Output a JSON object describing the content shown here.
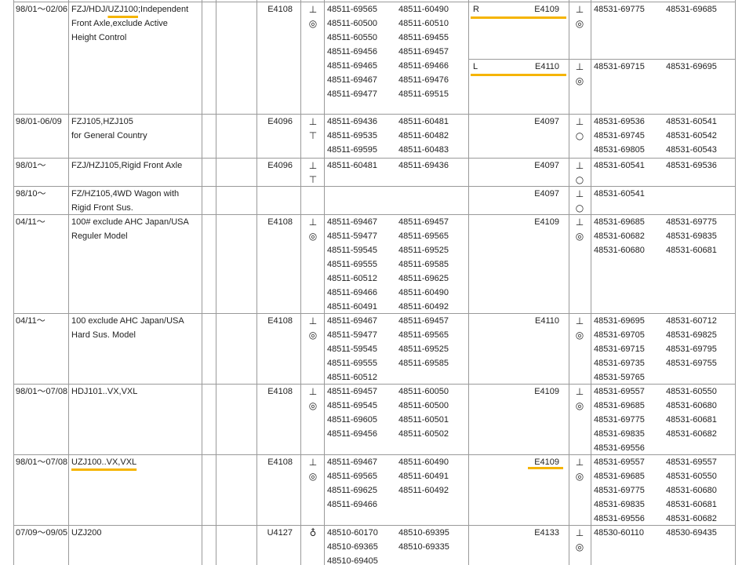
{
  "rows": [
    {
      "date": "98/01～02/06",
      "desc": [
        [
          {
            "text": "FZJ/HDJ/"
          },
          {
            "text": "UZJ100",
            "underline": true
          },
          {
            "text": ";Independent"
          }
        ],
        [
          {
            "text": "Front Axle,exclude Active"
          }
        ],
        [
          {
            "text": "Height Control"
          }
        ]
      ],
      "front": {
        "code": "E4108",
        "symbols": [
          "⊥",
          "◎"
        ],
        "parts": [
          [
            "48511-69565",
            "48511-60490"
          ],
          [
            "48511-60500",
            "48511-60510"
          ],
          [
            "48511-60550",
            "48511-69455"
          ],
          [
            "48511-69456",
            "48511-69457"
          ],
          [
            "48511-69465",
            "48511-69466"
          ],
          [
            "48511-69467",
            "48511-69476"
          ],
          [
            "48511-69477",
            "48511-69515"
          ]
        ]
      },
      "rear": [
        {
          "side": "R",
          "code": "E4109",
          "underline": true,
          "symbols": [
            "⊥",
            "◎"
          ],
          "parts": [
            [
              "48531-69775",
              "48531-69685"
            ]
          ]
        },
        {
          "side": "L",
          "code": "E4110",
          "underline": true,
          "symbols": [
            "⊥",
            "◎"
          ],
          "parts": [
            [
              "48531-69715",
              "48531-69695"
            ]
          ]
        }
      ]
    },
    {
      "date": "98/01-06/09",
      "desc": [
        [
          {
            "text": "FZJ105,HZJ105"
          }
        ],
        [
          {
            "text": "for General Country"
          }
        ]
      ],
      "front": {
        "code": "E4096",
        "symbols": [
          "⊥",
          "⊤"
        ],
        "parts": [
          [
            "48511-69436",
            "48511-60481"
          ],
          [
            "48511-69535",
            "48511-60482"
          ],
          [
            "48511-69595",
            "48511-60483"
          ]
        ]
      },
      "rear": [
        {
          "code": "E4097",
          "symbols": [
            "⊥",
            "○"
          ],
          "parts": [
            [
              "48531-69536",
              "48531-60541"
            ],
            [
              "48531-69745",
              "48531-60542"
            ],
            [
              "48531-69805",
              "48531-60543"
            ]
          ]
        }
      ]
    },
    {
      "date": "98/01～",
      "desc": [
        [
          {
            "text": "FZJ/HZJ105,Rigid Front Axle"
          }
        ]
      ],
      "front": {
        "code": "E4096",
        "symbols": [
          "⊥",
          "⊤"
        ],
        "parts": [
          [
            "48511-60481",
            "48511-69436"
          ]
        ]
      },
      "rear": [
        {
          "code": "E4097",
          "symbols": [
            "⊥",
            "○"
          ],
          "parts": [
            [
              "48531-60541",
              "48531-69536"
            ]
          ]
        }
      ]
    },
    {
      "date": "98/10～",
      "desc": [
        [
          {
            "text": "FZ/HZ105,4WD Wagon with"
          }
        ],
        [
          {
            "text": "Rigid Front Sus."
          }
        ]
      ],
      "rear": [
        {
          "code": "E4097",
          "symbols": [
            "⊥",
            "○"
          ],
          "parts": [
            [
              "48531-60541"
            ]
          ]
        }
      ]
    },
    {
      "date": "04/11～",
      "desc": [
        [
          {
            "text": "100# exclude AHC Japan/USA"
          }
        ],
        [
          {
            "text": "Reguler Model"
          }
        ]
      ],
      "front": {
        "code": "E4108",
        "symbols": [
          "⊥",
          "◎"
        ],
        "parts": [
          [
            "48511-69467",
            "48511-69457"
          ],
          [
            "48511-59477",
            "48511-69565"
          ],
          [
            "48511-59545",
            "48511-69525"
          ],
          [
            "48511-69555",
            "48511-69585"
          ],
          [
            "48511-60512",
            "48511-69625"
          ],
          [
            "48511-69466",
            "48511-60490"
          ],
          [
            "48511-60491",
            "48511-60492"
          ]
        ]
      },
      "rear": [
        {
          "code": "E4109",
          "symbols": [
            "⊥",
            "◎"
          ],
          "parts": [
            [
              "48531-69685",
              "48531-69775"
            ],
            [
              "48531-60682",
              "48531-69835"
            ],
            [
              "48531-60680",
              "48531-60681"
            ]
          ]
        }
      ]
    },
    {
      "date": "04/11～",
      "desc": [
        [
          {
            "text": "100 exclude AHC Japan/USA"
          }
        ],
        [
          {
            "text": "Hard Sus. Model"
          }
        ]
      ],
      "front": {
        "code": "E4108",
        "symbols": [
          "⊥",
          "◎"
        ],
        "parts": [
          [
            "48511-69467",
            "48511-69457"
          ],
          [
            "48511-59477",
            "48511-69565"
          ],
          [
            "48511-59545",
            "48511-69525"
          ],
          [
            "48511-69555",
            "48511-69585"
          ],
          [
            "48511-60512"
          ]
        ]
      },
      "rear": [
        {
          "code": "E4110",
          "symbols": [
            "⊥",
            "◎"
          ],
          "parts": [
            [
              "48531-69695",
              "48531-60712"
            ],
            [
              "48531-69705",
              "48531-69825"
            ],
            [
              "48531-69715",
              "48531-69795"
            ],
            [
              "48531-69735",
              "48531-69755"
            ],
            [
              "48531-59765"
            ]
          ]
        }
      ]
    },
    {
      "date": "98/01～07/08",
      "desc": [
        [
          {
            "text": "HDJ101..VX,VXL"
          }
        ]
      ],
      "front": {
        "code": "E4108",
        "symbols": [
          "⊥",
          "◎"
        ],
        "parts": [
          [
            "48511-69457",
            "48511-60050"
          ],
          [
            "48511-69545",
            "48511-60500"
          ],
          [
            "48511-69605",
            "48511-60501"
          ],
          [
            "48511-69456",
            "48511-60502"
          ]
        ]
      },
      "rear": [
        {
          "code": "E4109",
          "symbols": [
            "⊥",
            "◎"
          ],
          "parts": [
            [
              "48531-69557",
              "48531-60550"
            ],
            [
              "48531-69685",
              "48531-60680"
            ],
            [
              "48531-69775",
              "48531-60681"
            ],
            [
              "48531-69835",
              "48531-60682"
            ],
            [
              "48531-69556"
            ]
          ]
        }
      ]
    },
    {
      "date": "98/01～07/08",
      "desc": [
        [
          {
            "text": "UZJ100..VX,VXL",
            "underline": true
          }
        ]
      ],
      "front": {
        "code": "E4108",
        "symbols": [
          "⊥",
          "◎"
        ],
        "parts": [
          [
            "48511-69467",
            "48511-60490"
          ],
          [
            "48511-69565",
            "48511-60491"
          ],
          [
            "48511-69625",
            "48511-60492"
          ],
          [
            "48511-69466"
          ]
        ]
      },
      "rear": [
        {
          "code": "E4109",
          "underline": true,
          "symbols": [
            "⊥",
            "◎"
          ],
          "parts": [
            [
              "48531-69557",
              "48531-69557"
            ],
            [
              "48531-69685",
              "48531-60550"
            ],
            [
              "48531-69775",
              "48531-60680"
            ],
            [
              "48531-69835",
              "48531-60681"
            ],
            [
              "48531-69556",
              "48531-60682"
            ]
          ]
        }
      ]
    },
    {
      "date": "07/09～09/05",
      "desc": [
        [
          {
            "text": "UZJ200"
          }
        ]
      ],
      "front": {
        "code": "U4127",
        "symbols": [
          "♁"
        ],
        "parts": [
          [
            "48510-60170",
            "48510-69395"
          ],
          [
            "48510-69365",
            "48510-69335"
          ],
          [
            "48510-69405"
          ]
        ]
      },
      "rear": [
        {
          "code": "E4133",
          "symbols": [
            "⊥",
            "◎"
          ],
          "parts": [
            [
              "48530-60110",
              "48530-69435"
            ]
          ]
        }
      ]
    }
  ]
}
